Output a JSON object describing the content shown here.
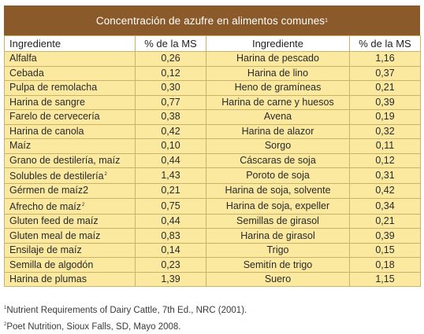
{
  "title": "Concentración de azufre en alimentos comunes",
  "title_note": "1",
  "headers": [
    "Ingrediente",
    "% de la MS",
    "Ingrediente",
    "% de la MS"
  ],
  "rows": [
    {
      "ing1": "Alfalfa",
      "ms1": "0,26",
      "ing2": "Harina de pescado",
      "ms2": "1,16"
    },
    {
      "ing1": "Cebada",
      "ms1": "0,12",
      "ing2": "Harina de lino",
      "ms2": "0,37"
    },
    {
      "ing1": "Pulpa de remolacha",
      "ms1": "0,30",
      "ing2": "Heno de gramíneas",
      "ms2": "0,21"
    },
    {
      "ing1": "Harina de sangre",
      "ms1": "0,77",
      "ing2": "Harina de carne y huesos",
      "ms2": "0,39"
    },
    {
      "ing1": "Farelo de cervecería",
      "ms1": "0,38",
      "ing2": "Avena",
      "ms2": "0,19"
    },
    {
      "ing1": "Harina de canola",
      "ms1": "0,42",
      "ing2": "Harina de alazor",
      "ms2": "0,32"
    },
    {
      "ing1": "Maíz",
      "ms1": "0,10",
      "ing2": "Sorgo",
      "ms2": "0,11"
    },
    {
      "ing1": "Grano de destilería, maíz",
      "ms1": "0,44",
      "ing2": "Cáscaras de soja",
      "ms2": "0,12"
    },
    {
      "ing1": "Solubles de destilería",
      "mark1": "2",
      "ms1": "1,43",
      "ing2": "Poroto de soja",
      "ms2": "0,31"
    },
    {
      "ing1": "Gérmen de maíz2",
      "ms1": "0,21",
      "ing2": "Harina de soja, solvente",
      "ms2": "0,42"
    },
    {
      "ing1": "Afrecho de maíz",
      "mark1": "2",
      "ms1": "0,75",
      "ing2": "Harina de soja, expeller",
      "ms2": "0,34"
    },
    {
      "ing1": "Gluten feed de maíz",
      "ms1": "0,44",
      "ing2": "Semillas de girasol",
      "ms2": "0,21"
    },
    {
      "ing1": "Gluten meal de maíz",
      "ms1": "0,83",
      "ing2": "Harina de girasol",
      "ms2": "0,39"
    },
    {
      "ing1": "Ensilaje de maíz",
      "ms1": "0,14",
      "ing2": "Trigo",
      "ms2": "0,15"
    },
    {
      "ing1": "Semilla de algodón",
      "ms1": "0,23",
      "ing2": "Semitín de trigo",
      "ms2": "0,18"
    },
    {
      "ing1": "Harina de plumas",
      "ms1": "1,39",
      "ing2": "Suero",
      "ms2": "1,15"
    }
  ],
  "footnotes": [
    {
      "mark": "1",
      "text": "Nutrient Requirements of Dairy Cattle, 7th Ed., NRC (2001)."
    },
    {
      "mark": "2",
      "text": "Poet Nutrition, Sioux Falls, SD, Mayo 2008."
    }
  ]
}
